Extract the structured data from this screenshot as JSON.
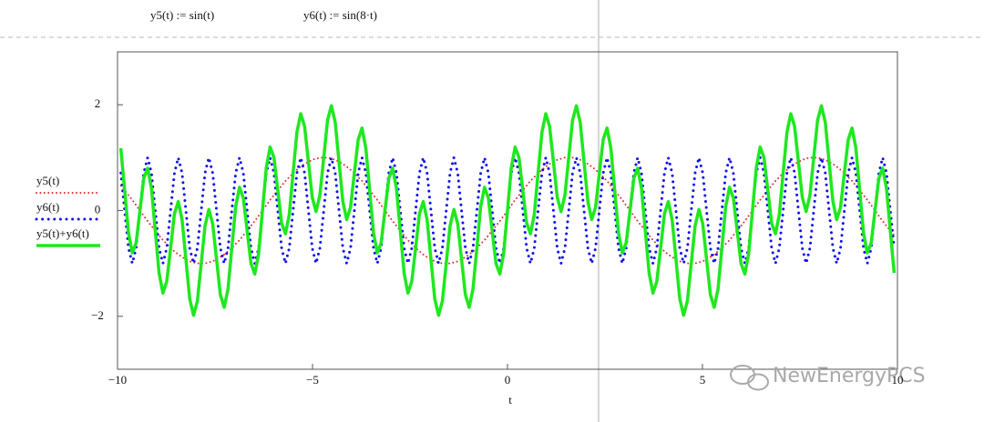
{
  "chart_data": {
    "type": "line",
    "annotations": [
      "y5(t) := sin(t)",
      "y6(t) := sin(8·t)"
    ],
    "xlabel": "t",
    "watermark": "NewEnergyPCS",
    "xlim": [
      -10,
      10
    ],
    "ylim": [
      -3,
      3
    ],
    "xticks": [
      {
        "value": -10,
        "label": "−10"
      },
      {
        "value": -5,
        "label": "−5"
      },
      0,
      5,
      10
    ],
    "yticks": [
      {
        "value": -2,
        "label": "−2"
      },
      0,
      2
    ],
    "grid": false,
    "x": [
      -9.916,
      -9.817,
      -9.719,
      -9.621,
      -9.523,
      -9.425,
      -9.327,
      -9.228,
      -9.13,
      -9.032,
      -8.934,
      -8.836,
      -8.738,
      -8.639,
      -8.541,
      -8.443,
      -8.345,
      -8.247,
      -8.149,
      -8.05,
      -7.952,
      -7.854,
      -7.756,
      -7.658,
      -7.56,
      -7.461,
      -7.363,
      -7.265,
      -7.167,
      -7.069,
      -6.97,
      -6.872,
      -6.774,
      -6.676,
      -6.578,
      -6.48,
      -6.381,
      -6.283,
      -6.185,
      -6.087,
      -5.989,
      -5.89,
      -5.792,
      -5.694,
      -5.596,
      -5.498,
      -5.4,
      -5.301,
      -5.203,
      -5.105,
      -5.007,
      -4.909,
      -4.811,
      -4.712,
      -4.614,
      -4.516,
      -4.418,
      -4.32,
      -4.222,
      -4.123,
      -4.025,
      -3.927,
      -3.829,
      -3.731,
      -3.632,
      -3.534,
      -3.436,
      -3.338,
      -3.24,
      -3.142,
      -3.043,
      -2.945,
      -2.847,
      -2.749,
      -2.651,
      -2.553,
      -2.454,
      -2.356,
      -2.258,
      -2.16,
      -2.062,
      -1.963,
      -1.865,
      -1.767,
      -1.669,
      -1.571,
      -1.473,
      -1.374,
      -1.276,
      -1.178,
      -1.08,
      -0.982,
      -0.884,
      -0.785,
      -0.687,
      -0.589,
      -0.491,
      -0.393,
      -0.295,
      -0.196,
      -0.098,
      0,
      0.098,
      0.196,
      0.295,
      0.393,
      0.491,
      0.589,
      0.687,
      0.785,
      0.884,
      0.982,
      1.08,
      1.178,
      1.276,
      1.374,
      1.473,
      1.571,
      1.669,
      1.767,
      1.865,
      1.963,
      2.062,
      2.16,
      2.258,
      2.356,
      2.454,
      2.553,
      2.651,
      2.749,
      2.847,
      2.945,
      3.043,
      3.142,
      3.24,
      3.338,
      3.436,
      3.534,
      3.632,
      3.731,
      3.829,
      3.927,
      4.025,
      4.123,
      4.222,
      4.32,
      4.418,
      4.516,
      4.614,
      4.712,
      4.811,
      4.909,
      5.007,
      5.105,
      5.203,
      5.301,
      5.4,
      5.498,
      5.596,
      5.694,
      5.792,
      5.89,
      5.989,
      6.087,
      6.185,
      6.283,
      6.381,
      6.48,
      6.578,
      6.676,
      6.774,
      6.872,
      6.97,
      7.069,
      7.167,
      7.265,
      7.363,
      7.461,
      7.56,
      7.658,
      7.756,
      7.854,
      7.952,
      8.05,
      8.149,
      8.247,
      8.345,
      8.443,
      8.541,
      8.639,
      8.738,
      8.836,
      8.934,
      9.032,
      9.13,
      9.228,
      9.327,
      9.425,
      9.523,
      9.621,
      9.719,
      9.817,
      9.916
    ],
    "series": [
      {
        "name": "y5(t)",
        "color": "#e02828",
        "line_style": "dotted",
        "line_width": 2,
        "values": [
          0.47,
          0.38,
          0.29,
          0.2,
          0.1,
          0,
          -0.1,
          -0.2,
          -0.29,
          -0.38,
          -0.47,
          -0.56,
          -0.63,
          -0.71,
          -0.77,
          -0.83,
          -0.88,
          -0.92,
          -0.96,
          -0.98,
          -1,
          -1,
          -1,
          -0.98,
          -0.96,
          -0.92,
          -0.88,
          -0.83,
          -0.77,
          -0.71,
          -0.63,
          -0.56,
          -0.47,
          -0.38,
          -0.29,
          -0.2,
          -0.1,
          0,
          0.1,
          0.2,
          0.29,
          0.38,
          0.47,
          0.56,
          0.63,
          0.71,
          0.77,
          0.83,
          0.88,
          0.92,
          0.96,
          0.98,
          1,
          1,
          1,
          0.98,
          0.96,
          0.92,
          0.88,
          0.83,
          0.77,
          0.71,
          0.63,
          0.56,
          0.47,
          0.38,
          0.29,
          0.2,
          0.1,
          0,
          -0.1,
          -0.2,
          -0.29,
          -0.38,
          -0.47,
          -0.56,
          -0.63,
          -0.71,
          -0.77,
          -0.83,
          -0.88,
          -0.92,
          -0.96,
          -0.98,
          -1,
          -1,
          -1,
          -0.98,
          -0.96,
          -0.92,
          -0.88,
          -0.83,
          -0.77,
          -0.71,
          -0.63,
          -0.56,
          -0.47,
          -0.38,
          -0.29,
          -0.2,
          -0.1,
          0,
          0.1,
          0.2,
          0.29,
          0.38,
          0.47,
          0.56,
          0.63,
          0.71,
          0.77,
          0.83,
          0.88,
          0.92,
          0.96,
          0.98,
          1,
          1,
          1,
          0.98,
          0.96,
          0.92,
          0.88,
          0.83,
          0.77,
          0.71,
          0.63,
          0.56,
          0.47,
          0.38,
          0.29,
          0.2,
          0.1,
          0,
          -0.1,
          -0.2,
          -0.29,
          -0.38,
          -0.47,
          -0.56,
          -0.63,
          -0.71,
          -0.77,
          -0.83,
          -0.88,
          -0.92,
          -0.96,
          -0.98,
          -1,
          -1,
          -1,
          -0.98,
          -0.96,
          -0.92,
          -0.88,
          -0.83,
          -0.77,
          -0.71,
          -0.63,
          -0.56,
          -0.47,
          -0.38,
          -0.29,
          -0.2,
          -0.1,
          0,
          0.1,
          0.2,
          0.29,
          0.38,
          0.47,
          0.56,
          0.63,
          0.71,
          0.77,
          0.83,
          0.88,
          0.92,
          0.96,
          0.98,
          1,
          1,
          1,
          0.98,
          0.96,
          0.92,
          0.88,
          0.83,
          0.77,
          0.71,
          0.63,
          0.56,
          0.47,
          0.38,
          0.29,
          0.2,
          0.1,
          0,
          -0.1,
          -0.2,
          -0.29,
          -0.38,
          -0.47
        ]
      },
      {
        "name": "y6(t)",
        "color": "#1010ee",
        "line_style": "dotted",
        "line_width": 3,
        "values": [
          0.71,
          0,
          -0.71,
          -1,
          -0.71,
          0,
          0.71,
          1,
          0.71,
          0,
          -0.71,
          -1,
          -0.71,
          0,
          0.71,
          1,
          0.71,
          0,
          -0.71,
          -1,
          -0.71,
          0,
          0.71,
          1,
          0.71,
          0,
          -0.71,
          -1,
          -0.71,
          0,
          0.71,
          1,
          0.71,
          0,
          -0.71,
          -1,
          -0.71,
          0,
          0.71,
          1,
          0.71,
          0,
          -0.71,
          -1,
          -0.71,
          0,
          0.71,
          1,
          0.71,
          0,
          -0.71,
          -1,
          -0.71,
          0,
          0.71,
          1,
          0.71,
          0,
          -0.71,
          -1,
          -0.71,
          0,
          0.71,
          1,
          0.71,
          0,
          -0.71,
          -1,
          -0.71,
          0,
          0.71,
          1,
          0.71,
          0,
          -0.71,
          -1,
          -0.71,
          0,
          0.71,
          1,
          0.71,
          0,
          -0.71,
          -1,
          -0.71,
          0,
          0.71,
          1,
          0.71,
          0,
          -0.71,
          -1,
          -0.71,
          0,
          0.71,
          1,
          0.71,
          0,
          -0.71,
          -1,
          -0.71,
          0,
          0.71,
          1,
          0.71,
          0,
          -0.71,
          -1,
          -0.71,
          0,
          0.71,
          1,
          0.71,
          0,
          -0.71,
          -1,
          -0.71,
          0,
          0.71,
          1,
          0.71,
          0,
          -0.71,
          -1,
          -0.71,
          0,
          0.71,
          1,
          0.71,
          0,
          -0.71,
          -1,
          -0.71,
          0,
          0.71,
          1,
          0.71,
          0,
          -0.71,
          -1,
          -0.71,
          0,
          0.71,
          1,
          0.71,
          0,
          -0.71,
          -1,
          -0.71,
          0,
          0.71,
          1,
          0.71,
          0,
          -0.71,
          -1,
          -0.71,
          0,
          0.71,
          1,
          0.71,
          0,
          -0.71,
          -1,
          -0.71,
          0,
          0.71,
          1,
          0.71,
          0,
          -0.71,
          -1,
          -0.71,
          0,
          0.71,
          1,
          0.71,
          0,
          -0.71,
          -1,
          -0.71,
          0,
          0.71,
          1,
          0.71,
          0,
          -0.71,
          -1,
          -0.71,
          0,
          0.71,
          1,
          0.71,
          0,
          -0.71,
          -1,
          -0.71,
          0,
          0.71,
          1,
          0.71,
          0,
          -0.71
        ]
      },
      {
        "name": "y5(t)+y6(t)",
        "color": "#1ee81e",
        "line_style": "solid",
        "line_width": 3.5,
        "values": [
          1.18,
          0.38,
          -0.42,
          -0.8,
          -0.61,
          0,
          0.61,
          0.8,
          0.42,
          -0.38,
          -1.18,
          -1.56,
          -1.34,
          -0.71,
          -0.06,
          0.17,
          -0.17,
          -0.92,
          -1.67,
          -1.98,
          -1.71,
          -1,
          -0.29,
          0.02,
          -0.25,
          -0.92,
          -1.59,
          -1.83,
          -1.48,
          -0.71,
          0.08,
          0.44,
          0.24,
          -0.38,
          -1,
          -1.2,
          -0.81,
          0,
          0.81,
          1.2,
          1,
          0.38,
          -0.24,
          -0.44,
          -0.08,
          0.71,
          1.48,
          1.83,
          1.59,
          0.92,
          0.25,
          -0.02,
          0.29,
          1,
          1.71,
          1.98,
          1.67,
          0.92,
          0.17,
          -0.17,
          0.06,
          0.71,
          1.34,
          1.56,
          1.18,
          0.38,
          -0.42,
          -0.8,
          -0.61,
          0,
          0.61,
          0.8,
          0.42,
          -0.38,
          -1.18,
          -1.56,
          -1.34,
          -0.71,
          -0.06,
          0.17,
          -0.17,
          -0.92,
          -1.67,
          -1.98,
          -1.71,
          -1,
          -0.29,
          0.02,
          -0.25,
          -0.92,
          -1.59,
          -1.83,
          -1.48,
          -0.71,
          0.08,
          0.44,
          0.24,
          -0.38,
          -1,
          -1.2,
          -0.81,
          0,
          0.81,
          1.2,
          1,
          0.38,
          -0.24,
          -0.44,
          -0.08,
          0.71,
          1.48,
          1.83,
          1.59,
          0.92,
          0.25,
          -0.02,
          0.29,
          1,
          1.71,
          1.98,
          1.67,
          0.92,
          0.17,
          -0.17,
          0.06,
          0.71,
          1.34,
          1.56,
          1.18,
          0.38,
          -0.42,
          -0.8,
          -0.61,
          0,
          0.61,
          0.8,
          0.42,
          -0.38,
          -1.18,
          -1.56,
          -1.34,
          -0.71,
          -0.06,
          0.17,
          -0.17,
          -0.92,
          -1.67,
          -1.98,
          -1.71,
          -1,
          -0.29,
          0.02,
          -0.25,
          -0.92,
          -1.59,
          -1.83,
          -1.48,
          -0.71,
          0.08,
          0.44,
          0.24,
          -0.38,
          -1,
          -1.2,
          -0.81,
          0,
          0.81,
          1.2,
          1,
          0.38,
          -0.24,
          -0.44,
          -0.08,
          0.71,
          1.48,
          1.83,
          1.59,
          0.92,
          0.25,
          -0.02,
          0.29,
          1,
          1.71,
          1.98,
          1.67,
          0.92,
          0.17,
          -0.17,
          0.06,
          0.71,
          1.34,
          1.56,
          1.18,
          0.38,
          -0.42,
          -0.8,
          -0.61,
          0,
          0.61,
          0.8,
          0.42,
          -0.38,
          -1.18
        ]
      }
    ]
  }
}
